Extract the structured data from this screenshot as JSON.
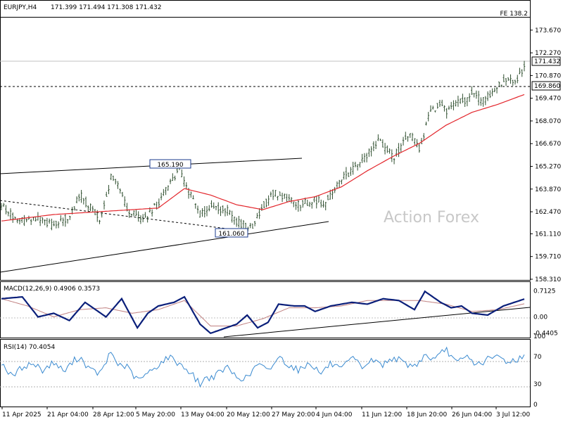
{
  "chart_data": [
    {
      "type": "candlestick",
      "title": "EURJPY,H4",
      "ohlc_header": "171.399 171.494 171.308 171.432",
      "overlay": "FE 138.2",
      "watermark": "Action Forex",
      "y_ticks": [
        "173.670",
        "172.270",
        "170.870",
        "169.470",
        "168.070",
        "166.670",
        "165.270",
        "163.870",
        "162.470",
        "161.110",
        "159.710",
        "158.310"
      ],
      "ylim": [
        158.31,
        174.4
      ],
      "last_price": "171.432",
      "level_line": "169.860",
      "annotations": [
        "165.190",
        "161.060"
      ],
      "x_ticks": [
        "11 Apr 2025",
        "21 Apr 04:00",
        "28 Apr 12:00",
        "5 May 20:00",
        "13 May 04:00",
        "20 May 12:00",
        "27 May 20:00",
        "4 Jun 04:00",
        "11 Jun 12:00",
        "18 Jun 20:00",
        "26 Jun 04:00",
        "3 Jul 12:00"
      ],
      "series": [
        {
          "name": "price",
          "x_frac": [
            0,
            0.03,
            0.07,
            0.1,
            0.13,
            0.15,
            0.19,
            0.21,
            0.23,
            0.24,
            0.27,
            0.3,
            0.32,
            0.34,
            0.36,
            0.38,
            0.4,
            0.43,
            0.45,
            0.48,
            0.5,
            0.52,
            0.54,
            0.57,
            0.6,
            0.62,
            0.65,
            0.68,
            0.7,
            0.72,
            0.75,
            0.78,
            0.8,
            0.82,
            0.84,
            0.85,
            0.87,
            0.89,
            0.9,
            0.92,
            0.94,
            0.96,
            0.98,
            1.0
          ],
          "values": [
            162.9,
            161.9,
            162.0,
            161.6,
            162.2,
            163.5,
            162.0,
            164.6,
            163.8,
            162.6,
            161.9,
            163.0,
            164.1,
            165.1,
            163.6,
            162.3,
            162.8,
            162.6,
            161.8,
            161.5,
            162.8,
            163.6,
            163.4,
            162.9,
            163.2,
            163.0,
            164.5,
            165.3,
            166.0,
            166.9,
            165.8,
            167.3,
            166.4,
            168.6,
            169.2,
            168.6,
            169.1,
            169.4,
            169.8,
            169.3,
            169.8,
            170.6,
            170.4,
            171.43
          ]
        },
        {
          "name": "ma",
          "x_frac": [
            0,
            0.1,
            0.2,
            0.3,
            0.35,
            0.4,
            0.45,
            0.5,
            0.55,
            0.6,
            0.65,
            0.7,
            0.75,
            0.8,
            0.85,
            0.9,
            0.95,
            1.0
          ],
          "values": [
            161.9,
            162.3,
            162.5,
            162.7,
            163.9,
            163.5,
            162.9,
            162.6,
            163.1,
            163.4,
            164.0,
            165.0,
            165.9,
            166.7,
            167.8,
            168.6,
            169.1,
            169.7
          ]
        }
      ]
    },
    {
      "type": "line",
      "title": "MACD(12,26,9) 0.4906 0.3573",
      "y_ticks": [
        "0.7125",
        "0.00",
        "-0.4405"
      ],
      "ylim": [
        -0.55,
        0.9
      ],
      "series": [
        {
          "name": "macd",
          "x_frac": [
            0,
            0.04,
            0.07,
            0.1,
            0.13,
            0.16,
            0.2,
            0.23,
            0.26,
            0.28,
            0.3,
            0.33,
            0.35,
            0.38,
            0.4,
            0.43,
            0.45,
            0.47,
            0.49,
            0.51,
            0.53,
            0.56,
            0.58,
            0.6,
            0.63,
            0.67,
            0.7,
            0.73,
            0.76,
            0.79,
            0.81,
            0.84,
            0.86,
            0.88,
            0.9,
            0.93,
            0.96,
            1.0
          ],
          "values": [
            0.5,
            0.55,
            0.0,
            0.1,
            -0.1,
            0.4,
            0.0,
            0.5,
            -0.3,
            0.1,
            0.3,
            0.4,
            0.55,
            -0.2,
            -0.45,
            -0.3,
            -0.2,
            0.05,
            -0.3,
            -0.15,
            0.35,
            0.3,
            0.3,
            0.15,
            0.3,
            0.4,
            0.35,
            0.5,
            0.45,
            0.2,
            0.7,
            0.4,
            0.25,
            0.3,
            0.1,
            0.05,
            0.3,
            0.49
          ]
        },
        {
          "name": "signal",
          "x_frac": [
            0,
            0.05,
            0.1,
            0.15,
            0.2,
            0.25,
            0.3,
            0.35,
            0.4,
            0.45,
            0.5,
            0.55,
            0.6,
            0.65,
            0.7,
            0.75,
            0.8,
            0.85,
            0.9,
            0.95,
            1.0
          ],
          "values": [
            0.5,
            0.3,
            0.0,
            0.2,
            0.25,
            0.1,
            0.2,
            0.45,
            -0.25,
            -0.25,
            -0.05,
            0.25,
            0.25,
            0.3,
            0.45,
            0.45,
            0.45,
            0.35,
            0.15,
            0.2,
            0.36
          ]
        }
      ]
    },
    {
      "type": "line",
      "title": "RSI(14) 70.4054",
      "y_ticks": [
        "100",
        "70",
        "30",
        "0"
      ],
      "ylim": [
        0,
        100
      ],
      "series": [
        {
          "name": "rsi",
          "x_frac": [
            0,
            0.02,
            0.04,
            0.06,
            0.08,
            0.1,
            0.12,
            0.14,
            0.15,
            0.17,
            0.19,
            0.21,
            0.22,
            0.24,
            0.26,
            0.28,
            0.3,
            0.32,
            0.34,
            0.36,
            0.38,
            0.39,
            0.41,
            0.43,
            0.45,
            0.47,
            0.49,
            0.51,
            0.53,
            0.55,
            0.57,
            0.59,
            0.61,
            0.63,
            0.65,
            0.67,
            0.69,
            0.71,
            0.73,
            0.75,
            0.77,
            0.79,
            0.81,
            0.83,
            0.85,
            0.87,
            0.89,
            0.91,
            0.93,
            0.95,
            0.97,
            1.0
          ],
          "values": [
            62,
            40,
            55,
            60,
            50,
            62,
            48,
            65,
            70,
            50,
            45,
            78,
            60,
            55,
            35,
            45,
            58,
            70,
            60,
            48,
            30,
            38,
            42,
            55,
            40,
            38,
            60,
            48,
            70,
            58,
            50,
            62,
            45,
            60,
            50,
            68,
            55,
            65,
            58,
            70,
            60,
            56,
            72,
            65,
            82,
            60,
            70,
            58,
            66,
            70,
            62,
            70
          ]
        }
      ]
    }
  ],
  "colors": {
    "bg": "#ffffff",
    "candle": "#2f4f2f",
    "ma": "#e3262c",
    "macd": "#0a1f7a",
    "signal": "#c08080",
    "rsi": "#3a8ad0",
    "trend": "#000000",
    "watermark": "#c8c8c8"
  }
}
